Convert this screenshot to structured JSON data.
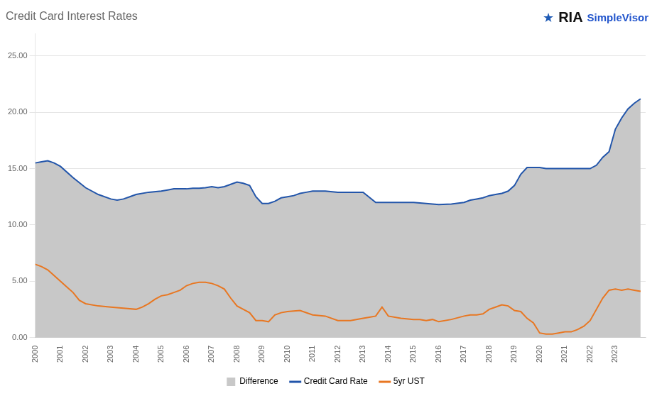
{
  "chart_data": {
    "type": "line",
    "title": "Credit Card Interest Rates",
    "annotations": [
      {
        "text": "★",
        "color": "#1f5bb5"
      },
      {
        "text": "RIA",
        "color": "#111111"
      },
      {
        "text": "SimpleVisor",
        "color": "#2255cc"
      }
    ],
    "xlim": [
      2000,
      2024.2
    ],
    "xticks": [
      2000,
      2001,
      2002,
      2003,
      2004,
      2005,
      2006,
      2007,
      2008,
      2009,
      2010,
      2011,
      2012,
      2013,
      2014,
      2015,
      2016,
      2017,
      2018,
      2019,
      2020,
      2021,
      2022,
      2023
    ],
    "ylim": [
      0,
      27
    ],
    "yticks": [
      {
        "value": 0.0,
        "label": "0.00"
      },
      {
        "value": 5.0,
        "label": "5.00"
      },
      {
        "value": 10.0,
        "label": "10.00"
      },
      {
        "value": 15.0,
        "label": "15.00"
      },
      {
        "value": 20.0,
        "label": "20.00"
      },
      {
        "value": 25.0,
        "label": "25.00"
      }
    ],
    "grid": "y",
    "legend": "bottom",
    "series": [
      {
        "name": "Difference",
        "type": "area",
        "color": "#c8c8c8",
        "x": [
          2000.0,
          2000.25,
          2000.5,
          2000.75,
          2001.0,
          2001.5,
          2002.0,
          2002.5,
          2003.0,
          2003.25,
          2003.5,
          2003.75,
          2004.0,
          2004.5,
          2005.0,
          2005.25,
          2005.5,
          2005.75,
          2006.0,
          2006.25,
          2006.5,
          2006.75,
          2007.0,
          2007.25,
          2007.5,
          2007.75,
          2008.0,
          2008.25,
          2008.5,
          2008.75,
          2009.0,
          2009.25,
          2009.5,
          2009.75,
          2010.0,
          2010.25,
          2010.5,
          2010.75,
          2011.0,
          2011.5,
          2012.0,
          2012.5,
          2013.0,
          2013.5,
          2014.0,
          2014.5,
          2015.0,
          2015.5,
          2016.0,
          2016.5,
          2017.0,
          2017.25,
          2017.5,
          2017.75,
          2018.0,
          2018.25,
          2018.5,
          2018.75,
          2019.0,
          2019.25,
          2019.5,
          2019.75,
          2020.0,
          2020.25,
          2020.5,
          2020.75,
          2021.0,
          2021.5,
          2022.0,
          2022.25,
          2022.5,
          2022.75,
          2023.0,
          2023.25,
          2023.5,
          2023.75,
          2024.0
        ],
        "values": [
          15.5,
          15.6,
          15.7,
          15.5,
          15.2,
          14.2,
          13.3,
          12.7,
          12.3,
          12.2,
          12.3,
          12.5,
          12.7,
          12.9,
          13.0,
          13.1,
          13.2,
          13.2,
          13.2,
          13.25,
          13.25,
          13.3,
          13.4,
          13.3,
          13.4,
          13.6,
          13.8,
          13.7,
          13.5,
          12.5,
          11.9,
          11.9,
          12.1,
          12.4,
          12.5,
          12.6,
          12.8,
          12.9,
          13.0,
          13.0,
          12.9,
          12.9,
          12.9,
          12.0,
          12.0,
          12.0,
          12.0,
          11.9,
          11.8,
          11.85,
          12.0,
          12.2,
          12.3,
          12.4,
          12.6,
          12.7,
          12.8,
          13.0,
          13.5,
          14.5,
          15.1,
          15.1,
          15.1,
          15.0,
          15.0,
          15.0,
          15.0,
          15.0,
          15.0,
          15.3,
          16.0,
          16.5,
          18.5,
          19.5,
          20.3,
          20.8,
          21.2
        ]
      },
      {
        "name": "Credit Card Rate",
        "type": "line",
        "color": "#2255aa",
        "x": [
          2000.0,
          2000.25,
          2000.5,
          2000.75,
          2001.0,
          2001.5,
          2002.0,
          2002.5,
          2003.0,
          2003.25,
          2003.5,
          2003.75,
          2004.0,
          2004.5,
          2005.0,
          2005.25,
          2005.5,
          2005.75,
          2006.0,
          2006.25,
          2006.5,
          2006.75,
          2007.0,
          2007.25,
          2007.5,
          2007.75,
          2008.0,
          2008.25,
          2008.5,
          2008.75,
          2009.0,
          2009.25,
          2009.5,
          2009.75,
          2010.0,
          2010.25,
          2010.5,
          2010.75,
          2011.0,
          2011.5,
          2012.0,
          2012.5,
          2013.0,
          2013.5,
          2014.0,
          2014.5,
          2015.0,
          2015.5,
          2016.0,
          2016.5,
          2017.0,
          2017.25,
          2017.5,
          2017.75,
          2018.0,
          2018.25,
          2018.5,
          2018.75,
          2019.0,
          2019.25,
          2019.5,
          2019.75,
          2020.0,
          2020.25,
          2020.5,
          2020.75,
          2021.0,
          2021.5,
          2022.0,
          2022.25,
          2022.5,
          2022.75,
          2023.0,
          2023.25,
          2023.5,
          2023.75,
          2024.0
        ],
        "values": [
          15.5,
          15.6,
          15.7,
          15.5,
          15.2,
          14.2,
          13.3,
          12.7,
          12.3,
          12.2,
          12.3,
          12.5,
          12.7,
          12.9,
          13.0,
          13.1,
          13.2,
          13.2,
          13.2,
          13.25,
          13.25,
          13.3,
          13.4,
          13.3,
          13.4,
          13.6,
          13.8,
          13.7,
          13.5,
          12.5,
          11.9,
          11.9,
          12.1,
          12.4,
          12.5,
          12.6,
          12.8,
          12.9,
          13.0,
          13.0,
          12.9,
          12.9,
          12.9,
          12.0,
          12.0,
          12.0,
          12.0,
          11.9,
          11.8,
          11.85,
          12.0,
          12.2,
          12.3,
          12.4,
          12.6,
          12.7,
          12.8,
          13.0,
          13.5,
          14.5,
          15.1,
          15.1,
          15.1,
          15.0,
          15.0,
          15.0,
          15.0,
          15.0,
          15.0,
          15.3,
          16.0,
          16.5,
          18.5,
          19.5,
          20.3,
          20.8,
          21.2
        ]
      },
      {
        "name": "5yr UST",
        "type": "line",
        "color": "#e87722",
        "x": [
          2000.0,
          2000.25,
          2000.5,
          2000.75,
          2001.0,
          2001.25,
          2001.5,
          2001.75,
          2002.0,
          2002.5,
          2003.0,
          2003.5,
          2004.0,
          2004.25,
          2004.5,
          2004.75,
          2005.0,
          2005.25,
          2005.5,
          2005.75,
          2006.0,
          2006.25,
          2006.5,
          2006.75,
          2007.0,
          2007.25,
          2007.5,
          2007.75,
          2008.0,
          2008.25,
          2008.5,
          2008.75,
          2009.0,
          2009.25,
          2009.5,
          2009.75,
          2010.0,
          2010.5,
          2011.0,
          2011.5,
          2012.0,
          2012.5,
          2013.0,
          2013.25,
          2013.5,
          2013.75,
          2014.0,
          2014.5,
          2015.0,
          2015.25,
          2015.5,
          2015.75,
          2016.0,
          2016.5,
          2017.0,
          2017.25,
          2017.5,
          2017.75,
          2018.0,
          2018.25,
          2018.5,
          2018.75,
          2019.0,
          2019.25,
          2019.5,
          2019.75,
          2020.0,
          2020.25,
          2020.5,
          2020.75,
          2021.0,
          2021.25,
          2021.5,
          2021.75,
          2022.0,
          2022.25,
          2022.5,
          2022.75,
          2023.0,
          2023.25,
          2023.5,
          2023.75,
          2024.0
        ],
        "values": [
          6.5,
          6.3,
          6.0,
          5.5,
          5.0,
          4.5,
          4.0,
          3.3,
          3.0,
          2.8,
          2.7,
          2.6,
          2.5,
          2.7,
          3.0,
          3.4,
          3.7,
          3.8,
          4.0,
          4.2,
          4.6,
          4.8,
          4.9,
          4.9,
          4.8,
          4.6,
          4.3,
          3.5,
          2.8,
          2.5,
          2.2,
          1.5,
          1.5,
          1.4,
          2.0,
          2.2,
          2.3,
          2.4,
          2.0,
          1.9,
          1.5,
          1.5,
          1.7,
          1.8,
          1.9,
          2.7,
          1.9,
          1.7,
          1.6,
          1.6,
          1.5,
          1.6,
          1.4,
          1.6,
          1.9,
          2.0,
          2.0,
          2.1,
          2.5,
          2.7,
          2.9,
          2.8,
          2.4,
          2.3,
          1.7,
          1.3,
          0.4,
          0.3,
          0.3,
          0.4,
          0.5,
          0.5,
          0.7,
          1.0,
          1.5,
          2.5,
          3.5,
          4.2,
          4.3,
          4.2,
          4.3,
          4.2,
          4.1
        ]
      }
    ]
  }
}
